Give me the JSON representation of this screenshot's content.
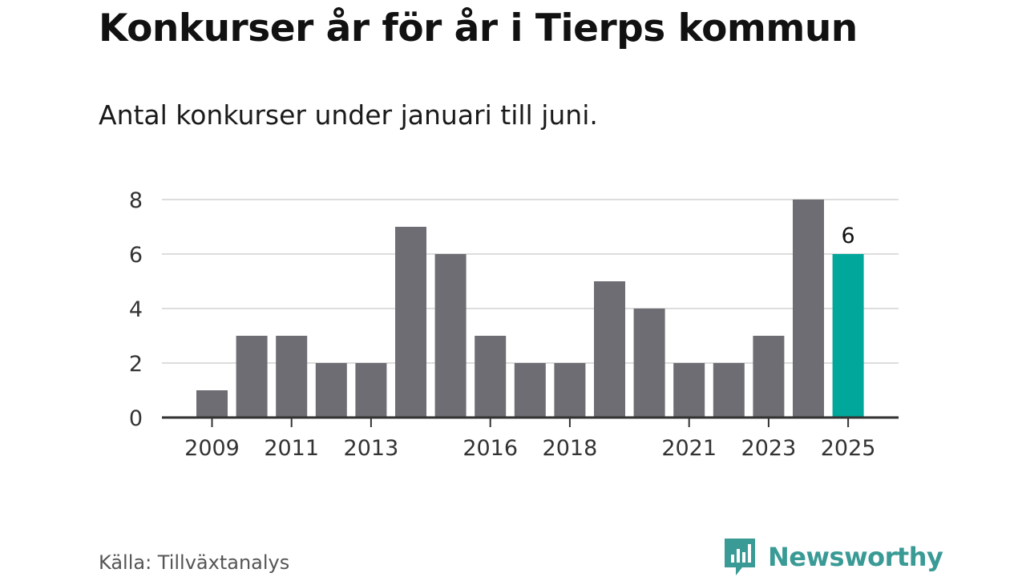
{
  "header": {
    "title": "Konkurser år för år i Tierps kommun",
    "subtitle": "Antal konkurser under januari till juni."
  },
  "footer": {
    "source": "Källa: Tillväxtanalys",
    "brand": "Newsworthy"
  },
  "colors": {
    "bar": "#6e6d73",
    "highlight": "#00a79a",
    "grid": "#dddddd",
    "axis": "#333333",
    "brand": "#3a9a95"
  },
  "chart_data": {
    "type": "bar",
    "categories": [
      "2009",
      "2010",
      "2011",
      "2012",
      "2013",
      "2014",
      "2015",
      "2016",
      "2017",
      "2018",
      "2019",
      "2020",
      "2021",
      "2022",
      "2023",
      "2024",
      "2025"
    ],
    "values": [
      1,
      3,
      3,
      2,
      2,
      7,
      6,
      3,
      2,
      2,
      5,
      4,
      2,
      2,
      3,
      8,
      6
    ],
    "x_tick_labels": [
      "2009",
      "2011",
      "2013",
      "2016",
      "2018",
      "2021",
      "2023",
      "2025"
    ],
    "y_ticks": [
      0,
      2,
      4,
      6,
      8
    ],
    "ylim": [
      0,
      8
    ],
    "highlight_category": "2025",
    "data_labels": [
      {
        "category": "2025",
        "text": "6"
      }
    ],
    "xlabel": "",
    "ylabel": "",
    "grid": true,
    "legend": "none"
  }
}
